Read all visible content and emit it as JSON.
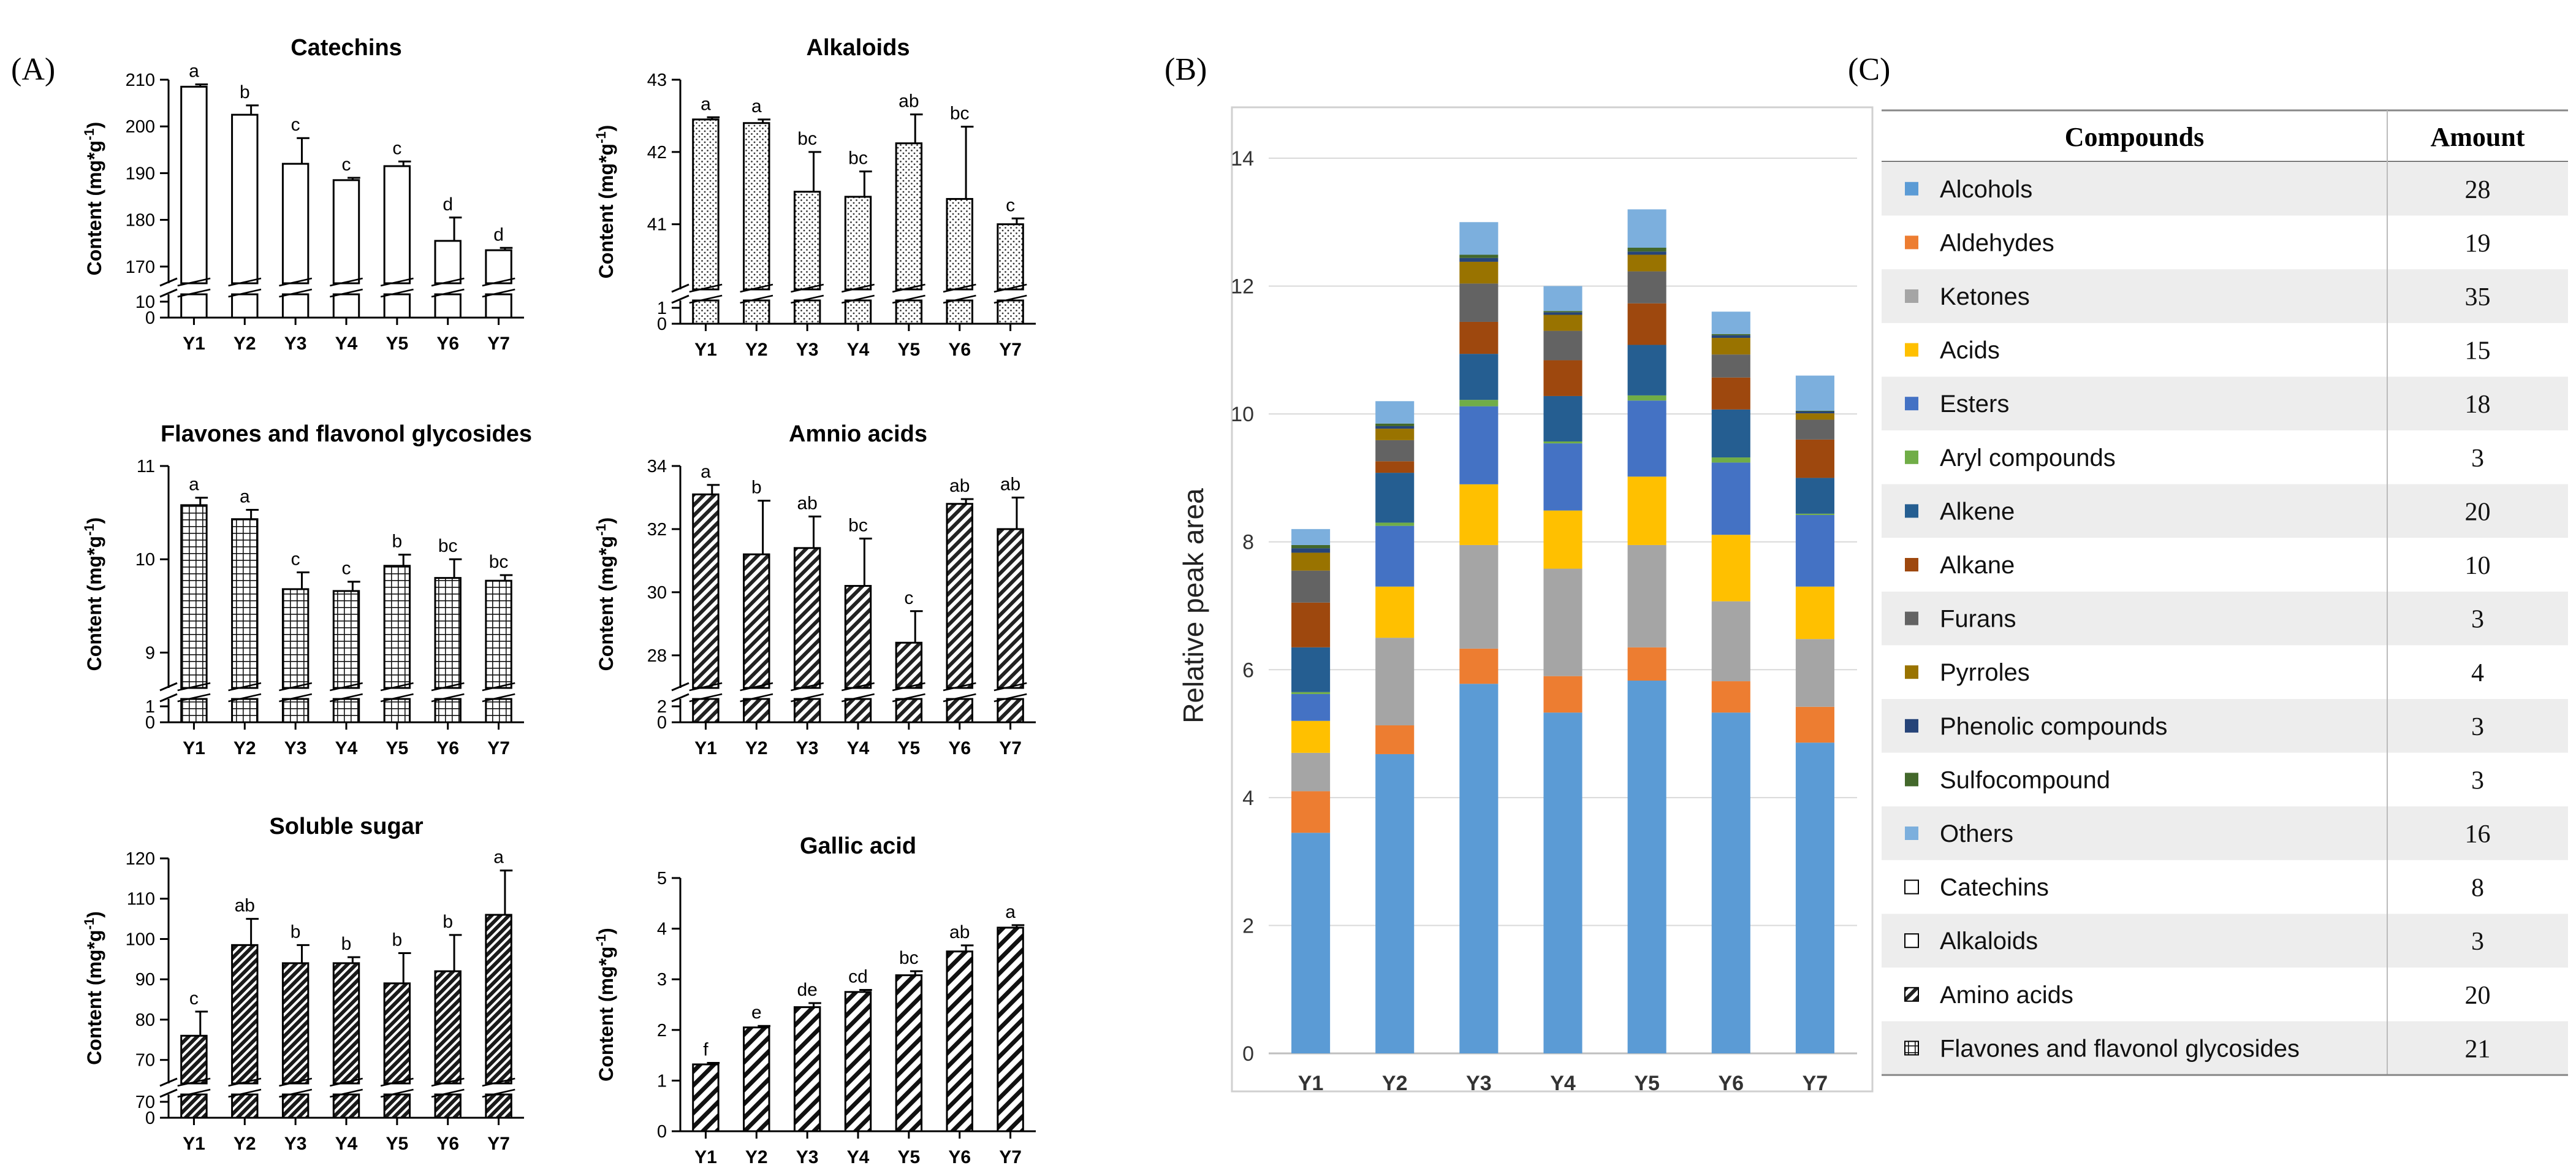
{
  "panels": {
    "a": "(A)",
    "b": "(B)",
    "c": "(C)"
  },
  "chart_data": [
    {
      "type": "bar",
      "id": "catechins",
      "title": "Catechins",
      "categories": [
        "Y1",
        "Y2",
        "Y3",
        "Y4",
        "Y5",
        "Y6",
        "Y7"
      ],
      "values": [
        208.5,
        202.5,
        192,
        188.5,
        191.5,
        175.5,
        173.5
      ],
      "errors": [
        0.5,
        2,
        5.5,
        0.5,
        1,
        5,
        0.5
      ],
      "letters": [
        "a",
        "b",
        "c",
        "c",
        "c",
        "d",
        "d"
      ],
      "ylabel": "Content (mg*g-1)",
      "ylim": [
        168,
        210
      ],
      "yticks": [
        170,
        180,
        190,
        200,
        210
      ],
      "lower_ticks": [
        0,
        10
      ],
      "pattern": "plain"
    },
    {
      "type": "bar",
      "id": "alkaloids",
      "title": "Alkaloids",
      "categories": [
        "Y1",
        "Y2",
        "Y3",
        "Y4",
        "Y5",
        "Y6",
        "Y7"
      ],
      "values": [
        42.45,
        42.4,
        41.45,
        41.38,
        42.12,
        41.35,
        41.0
      ],
      "errors": [
        0.03,
        0.05,
        0.55,
        0.35,
        0.4,
        1.0,
        0.08
      ],
      "letters": [
        "a",
        "a",
        "bc",
        "bc",
        "ab",
        "bc",
        "c"
      ],
      "ylabel": "Content (mg*g-1)",
      "ylim": [
        40.2,
        43
      ],
      "yticks": [
        41,
        42,
        43
      ],
      "lower_ticks": [
        0,
        1
      ],
      "pattern": "dots"
    },
    {
      "type": "bar",
      "id": "flavones",
      "title": "Flavones and flavonol glycosides",
      "categories": [
        "Y1",
        "Y2",
        "Y3",
        "Y4",
        "Y5",
        "Y6",
        "Y7"
      ],
      "values": [
        10.58,
        10.43,
        9.68,
        9.66,
        9.93,
        9.8,
        9.77
      ],
      "errors": [
        0.08,
        0.1,
        0.18,
        0.1,
        0.12,
        0.2,
        0.06
      ],
      "letters": [
        "a",
        "a",
        "c",
        "c",
        "b",
        "bc",
        "bc"
      ],
      "ylabel": "Content (mg*g-1)",
      "ylim": [
        8.7,
        11
      ],
      "yticks": [
        9,
        10,
        11
      ],
      "lower_ticks": [
        0,
        1
      ],
      "pattern": "grid"
    },
    {
      "type": "bar",
      "id": "amino",
      "title": "Amnio acids",
      "categories": [
        "Y1",
        "Y2",
        "Y3",
        "Y4",
        "Y5",
        "Y6",
        "Y7"
      ],
      "values": [
        33.1,
        31.2,
        31.4,
        30.2,
        28.4,
        32.8,
        32.0
      ],
      "errors": [
        0.3,
        1.7,
        1.0,
        1.5,
        1.0,
        0.15,
        1.0
      ],
      "letters": [
        "a",
        "b",
        "ab",
        "bc",
        "c",
        "ab",
        "ab"
      ],
      "ylabel": "Content (mg*g-1)",
      "ylim": [
        27.2,
        34
      ],
      "yticks": [
        28,
        30,
        32,
        34
      ],
      "lower_ticks": [
        0,
        2
      ],
      "pattern": "diag"
    },
    {
      "type": "bar",
      "id": "sugar",
      "title": "Soluble sugar",
      "categories": [
        "Y1",
        "Y2",
        "Y3",
        "Y4",
        "Y5",
        "Y6",
        "Y7"
      ],
      "values": [
        76,
        98.5,
        94,
        94,
        89,
        92,
        106
      ],
      "errors": [
        6,
        6.5,
        4.5,
        1.5,
        7.5,
        9,
        11
      ],
      "letters": [
        "c",
        "ab",
        "b",
        "b",
        "b",
        "b",
        "a"
      ],
      "ylabel": "Content (mg*g-1)",
      "ylim": [
        66,
        120
      ],
      "yticks": [
        70,
        80,
        90,
        100,
        110,
        120
      ],
      "lower_ticks": [
        0,
        70
      ],
      "pattern": "diagdense"
    },
    {
      "type": "bar",
      "id": "gallic",
      "title": "Gallic acid",
      "categories": [
        "Y1",
        "Y2",
        "Y3",
        "Y4",
        "Y5",
        "Y6",
        "Y7"
      ],
      "values": [
        1.32,
        2.05,
        2.45,
        2.75,
        3.08,
        3.55,
        4.02
      ],
      "errors": [
        0.03,
        0.03,
        0.08,
        0.04,
        0.08,
        0.12,
        0.05
      ],
      "letters": [
        "f",
        "e",
        "de",
        "cd",
        "bc",
        "ab",
        "a"
      ],
      "ylabel": "Content (mg*g-1)",
      "ylim": [
        0,
        5
      ],
      "yticks": [
        0,
        1,
        2,
        3,
        4,
        5
      ],
      "pattern": "diagwide"
    },
    {
      "type": "stacked-bar",
      "id": "volatiles",
      "categories": [
        "Y1",
        "Y2",
        "Y3",
        "Y4",
        "Y5",
        "Y6",
        "Y7"
      ],
      "ylabel": "Relative peak area",
      "ylim": [
        0,
        14
      ],
      "yticks": [
        0,
        2,
        4,
        6,
        8,
        10,
        12,
        14
      ],
      "series": [
        {
          "name": "Alcohols",
          "color": "#5b9bd5",
          "values": [
            3.45,
            4.68,
            5.78,
            5.33,
            5.83,
            5.33,
            4.86
          ]
        },
        {
          "name": "Aldehydes",
          "color": "#ed7d31",
          "values": [
            0.65,
            0.45,
            0.55,
            0.57,
            0.52,
            0.49,
            0.56
          ]
        },
        {
          "name": "Ketones",
          "color": "#a5a5a5",
          "values": [
            0.6,
            1.37,
            1.62,
            1.68,
            1.6,
            1.25,
            1.06
          ]
        },
        {
          "name": "Acids",
          "color": "#ffc000",
          "values": [
            0.5,
            0.8,
            0.95,
            0.91,
            1.07,
            1.04,
            0.82
          ]
        },
        {
          "name": "Esters",
          "color": "#4472c4",
          "values": [
            0.42,
            0.95,
            1.22,
            1.05,
            1.19,
            1.13,
            1.12
          ]
        },
        {
          "name": "Aryl compounds",
          "color": "#70ad47",
          "values": [
            0.03,
            0.05,
            0.1,
            0.03,
            0.08,
            0.08,
            0.02
          ]
        },
        {
          "name": "Alkene",
          "color": "#255e91",
          "values": [
            0.7,
            0.78,
            0.72,
            0.71,
            0.79,
            0.75,
            0.56
          ]
        },
        {
          "name": "Alkane",
          "color": "#9e480e",
          "values": [
            0.7,
            0.18,
            0.5,
            0.56,
            0.65,
            0.5,
            0.6
          ]
        },
        {
          "name": "Furans",
          "color": "#636363",
          "values": [
            0.5,
            0.33,
            0.6,
            0.46,
            0.5,
            0.36,
            0.31
          ]
        },
        {
          "name": "Pyrroles",
          "color": "#997300",
          "values": [
            0.28,
            0.18,
            0.34,
            0.25,
            0.26,
            0.26,
            0.1
          ]
        },
        {
          "name": "Phenolic compounds",
          "color": "#264478",
          "values": [
            0.07,
            0.04,
            0.06,
            0.04,
            0.05,
            0.04,
            0.03
          ]
        },
        {
          "name": "Sulfocompound",
          "color": "#43682b",
          "values": [
            0.05,
            0.04,
            0.05,
            0.02,
            0.06,
            0.02,
            0.01
          ]
        },
        {
          "name": "Others",
          "color": "#7cafdd",
          "values": [
            0.25,
            0.35,
            0.51,
            0.39,
            0.6,
            0.35,
            0.55
          ]
        }
      ]
    }
  ],
  "table": {
    "headers": [
      "Compounds",
      "Amount"
    ],
    "rows": [
      {
        "name": "Alcohols",
        "amount": "28",
        "marker": "#5b9bd5"
      },
      {
        "name": "Aldehydes",
        "amount": "19",
        "marker": "#ed7d31"
      },
      {
        "name": "Ketones",
        "amount": "35",
        "marker": "#a5a5a5"
      },
      {
        "name": "Acids",
        "amount": "15",
        "marker": "#ffc000"
      },
      {
        "name": "Esters",
        "amount": "18",
        "marker": "#4472c4"
      },
      {
        "name": "Aryl compounds",
        "amount": "3",
        "marker": "#70ad47"
      },
      {
        "name": "Alkene",
        "amount": "20",
        "marker": "#255e91"
      },
      {
        "name": "Alkane",
        "amount": "10",
        "marker": "#9e480e"
      },
      {
        "name": "Furans",
        "amount": "3",
        "marker": "#636363"
      },
      {
        "name": "Pyrroles",
        "amount": "4",
        "marker": "#997300"
      },
      {
        "name": "Phenolic compounds",
        "amount": "3",
        "marker": "#264478"
      },
      {
        "name": "Sulfocompound",
        "amount": "3",
        "marker": "#43682b"
      },
      {
        "name": "Others",
        "amount": "16",
        "marker": "#7cafdd"
      },
      {
        "name": "Catechins",
        "amount": "8",
        "marker": "plain"
      },
      {
        "name": "Alkaloids",
        "amount": "3",
        "marker": "plain"
      },
      {
        "name": "Amino acids",
        "amount": "20",
        "marker": "diag"
      },
      {
        "name": "Flavones and flavonol glycosides",
        "amount": "21",
        "marker": "grid"
      }
    ]
  }
}
